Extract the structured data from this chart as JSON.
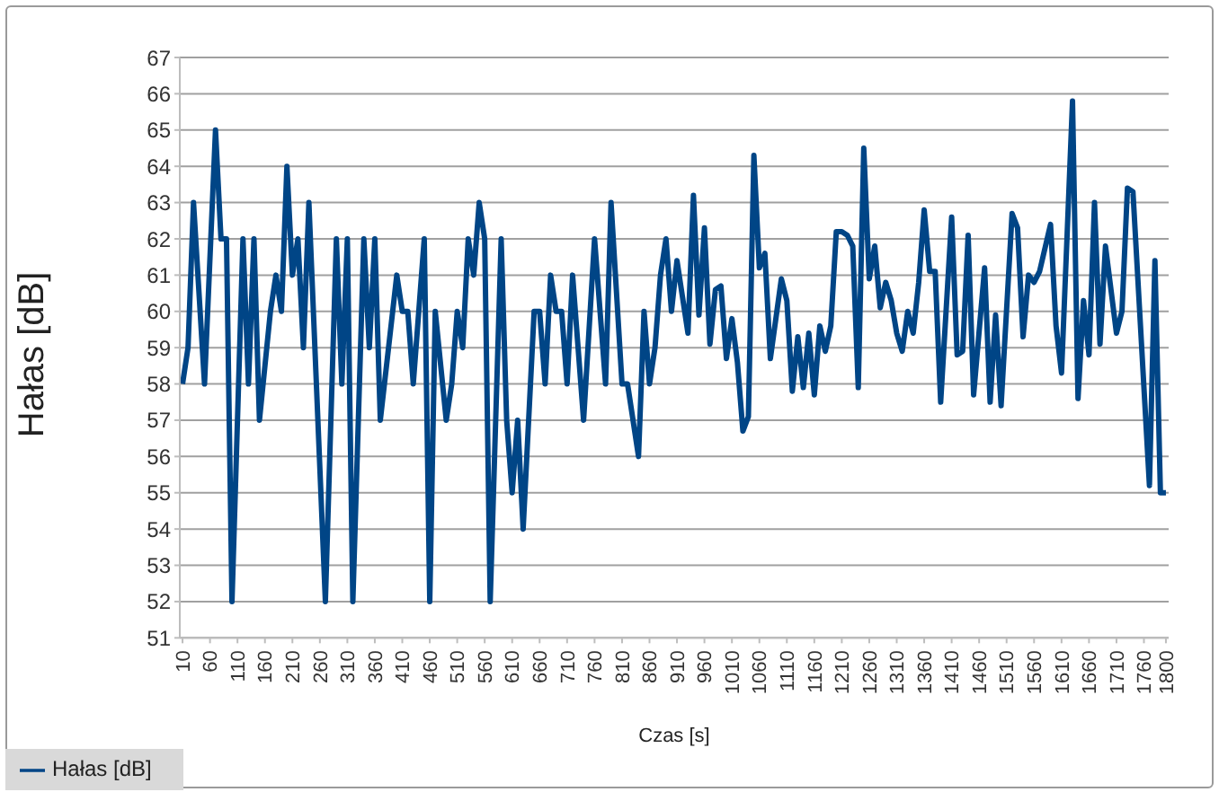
{
  "chart_data": {
    "type": "line",
    "xlabel": "Czas [s]",
    "ylabel": "Hałas [dB]",
    "xlim": [
      5,
      1805
    ],
    "ylim": [
      51,
      67
    ],
    "yticks": [
      51,
      52,
      53,
      54,
      55,
      56,
      57,
      58,
      59,
      60,
      61,
      62,
      63,
      64,
      65,
      66,
      67
    ],
    "xticks": [
      10,
      60,
      110,
      160,
      210,
      260,
      310,
      360,
      410,
      460,
      510,
      560,
      610,
      660,
      710,
      760,
      810,
      860,
      910,
      960,
      1010,
      1060,
      1110,
      1160,
      1210,
      1260,
      1310,
      1360,
      1410,
      1460,
      1510,
      1560,
      1610,
      1660,
      1710,
      1760,
      1800
    ],
    "grid": "y",
    "legend": "bottom left",
    "marker": "none",
    "line_style": "solid",
    "series": [
      {
        "name": "Hałas [dB]",
        "color": "#004586",
        "x": [
          10,
          20,
          30,
          50,
          70,
          80,
          90,
          100,
          120,
          130,
          140,
          150,
          170,
          180,
          190,
          200,
          210,
          220,
          230,
          240,
          270,
          290,
          300,
          310,
          320,
          340,
          350,
          360,
          370,
          400,
          410,
          420,
          430,
          450,
          460,
          470,
          490,
          500,
          510,
          520,
          530,
          540,
          550,
          560,
          570,
          590,
          600,
          610,
          620,
          630,
          650,
          660,
          670,
          680,
          690,
          700,
          710,
          720,
          740,
          760,
          780,
          790,
          810,
          820,
          840,
          850,
          860,
          870,
          880,
          890,
          900,
          910,
          920,
          930,
          940,
          950,
          960,
          970,
          980,
          990,
          1000,
          1010,
          1020,
          1030,
          1040,
          1050,
          1060,
          1070,
          1080,
          1090,
          1100,
          1110,
          1120,
          1130,
          1140,
          1150,
          1160,
          1170,
          1180,
          1190,
          1200,
          1210,
          1220,
          1230,
          1240,
          1250,
          1260,
          1270,
          1280,
          1290,
          1300,
          1310,
          1320,
          1330,
          1340,
          1350,
          1360,
          1370,
          1380,
          1390,
          1410,
          1420,
          1430,
          1440,
          1450,
          1470,
          1480,
          1490,
          1500,
          1520,
          1530,
          1540,
          1550,
          1560,
          1570,
          1590,
          1600,
          1610,
          1630,
          1640,
          1650,
          1660,
          1670,
          1680,
          1690,
          1710,
          1720,
          1730,
          1740,
          1770,
          1780,
          1790,
          1800
        ],
        "values": [
          58,
          59,
          63,
          58,
          65,
          62,
          62,
          52,
          62,
          58,
          62,
          57,
          60,
          61,
          60,
          64,
          61,
          62,
          59,
          63,
          52,
          62,
          58,
          62,
          52,
          62,
          59,
          62,
          57,
          61,
          60,
          60,
          58,
          62,
          52,
          60,
          57,
          58,
          60,
          59,
          62,
          61,
          63,
          62,
          52,
          62,
          57,
          55,
          57,
          54,
          60,
          60,
          58,
          61,
          60,
          60,
          58,
          61,
          57,
          62,
          58,
          63,
          58,
          58,
          56,
          60,
          58,
          59,
          61,
          62,
          60,
          61.4,
          60.4,
          59.4,
          63.2,
          59.9,
          62.3,
          59.1,
          60.6,
          60.7,
          58.7,
          59.8,
          58.6,
          56.7,
          57.1,
          64.3,
          61.2,
          61.6,
          58.7,
          59.8,
          60.9,
          60.3,
          57.8,
          59.3,
          57.9,
          59.4,
          57.7,
          59.6,
          58.9,
          59.6,
          62.2,
          62.2,
          62.1,
          61.8,
          57.9,
          64.5,
          60.9,
          61.8,
          60.1,
          60.8,
          60.3,
          59.4,
          58.9,
          60,
          59.4,
          60.8,
          62.8,
          61.1,
          61.1,
          57.5,
          62.6,
          58.8,
          58.9,
          62.1,
          57.7,
          61.2,
          57.5,
          59.9,
          57.4,
          62.7,
          62.3,
          59.3,
          61,
          60.8,
          61.1,
          62.4,
          59.6,
          58.3,
          65.8,
          57.6,
          60.3,
          58.8,
          63,
          59.1,
          61.8,
          59.4,
          60,
          63.4,
          63.3,
          55.2,
          61.4,
          55,
          55
        ]
      }
    ]
  }
}
